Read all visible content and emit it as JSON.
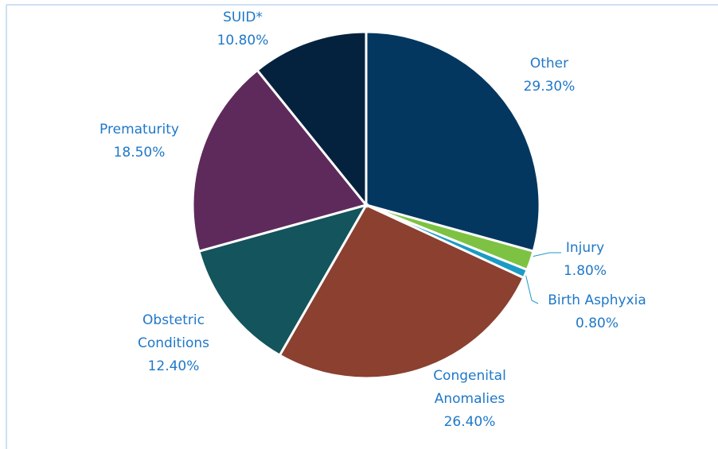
{
  "chart_data": {
    "type": "pie",
    "categories": [
      "Other",
      "Injury",
      "Birth Asphyxia",
      "Congenital Anomalies",
      "Obstetric Conditions",
      "Prematurity",
      "SUID*"
    ],
    "values": [
      29.3,
      1.8,
      0.8,
      26.4,
      12.4,
      18.5,
      10.8
    ],
    "value_labels": [
      "29.30%",
      "1.80%",
      "0.80%",
      "26.40%",
      "12.40%",
      "18.50%",
      "10.80%"
    ],
    "colors": [
      "#04375f",
      "#7dc242",
      "#1c9bc4",
      "#8b4030",
      "#14545c",
      "#5e2a5b",
      "#04223d"
    ]
  }
}
